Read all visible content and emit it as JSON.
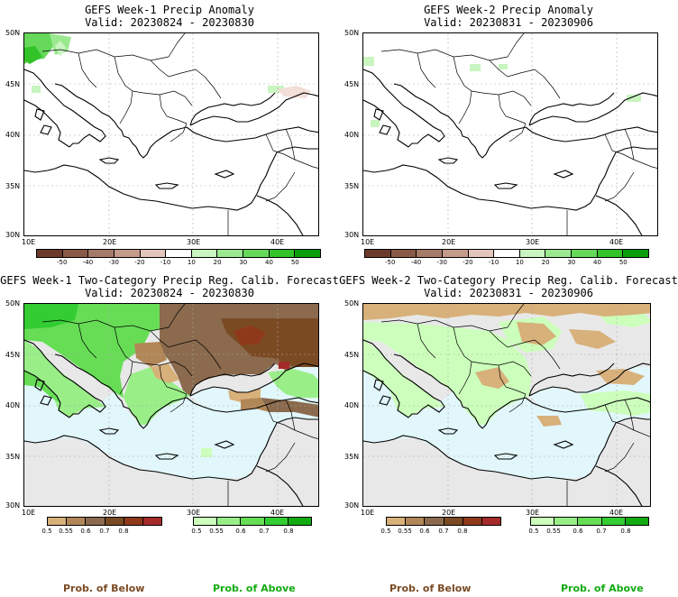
{
  "panels": [
    {
      "line1": "GEFS Week-1 Precip Anomaly",
      "line2": "Valid: 20230824 - 20230830"
    },
    {
      "line1": "GEFS Week-2 Precip Anomaly",
      "line2": "Valid: 20230831 - 20230906"
    },
    {
      "line1": "GEFS Week-1 Two-Category Precip Reg. Calib. Forecast",
      "line2": "Valid: 20230824 - 20230830"
    },
    {
      "line1": "GEFS Week-2 Two-Category Precip Reg. Calib. Forecast",
      "line2": "Valid: 20230831 - 20230906"
    }
  ],
  "axes": {
    "lat": [
      "50N",
      "45N",
      "40N",
      "35N",
      "30N"
    ],
    "lon": [
      "10E",
      "20E",
      "30E",
      "40E"
    ]
  },
  "anomaly_scale": {
    "labels": [
      "-50",
      "-40",
      "-30",
      "-20",
      "-10",
      "10",
      "20",
      "30",
      "40",
      "50"
    ],
    "colors": [
      "#6b3a2a",
      "#8a5a48",
      "#a57a68",
      "#c49a8a",
      "#e3c6bb",
      "#ffffff",
      "#c8f5c0",
      "#9be890",
      "#66d85a",
      "#32c328",
      "#0a9e0a"
    ]
  },
  "prob_scale": {
    "below_labels": [
      "0.5",
      "0.55",
      "0.6",
      "0.7",
      "0.8"
    ],
    "above_labels": [
      "0.5",
      "0.55",
      "0.6",
      "0.7",
      "0.8"
    ],
    "below_colors": [
      "#d8b07a",
      "#b28758",
      "#8b6a4d",
      "#7a4a23",
      "#8e3a1a",
      "#a52a2a"
    ],
    "above_colors": [
      "#ccffbb",
      "#99ee88",
      "#66dd55",
      "#33cc33",
      "#11aa11"
    ]
  },
  "legend": {
    "below": "Prob. of Below",
    "above": "Prob. of Above",
    "below_color": "#7a4a23",
    "above_color": "#11aa11"
  },
  "colors": {
    "sea": "#e1f7fb",
    "dry_land": "#e8e8e8"
  }
}
